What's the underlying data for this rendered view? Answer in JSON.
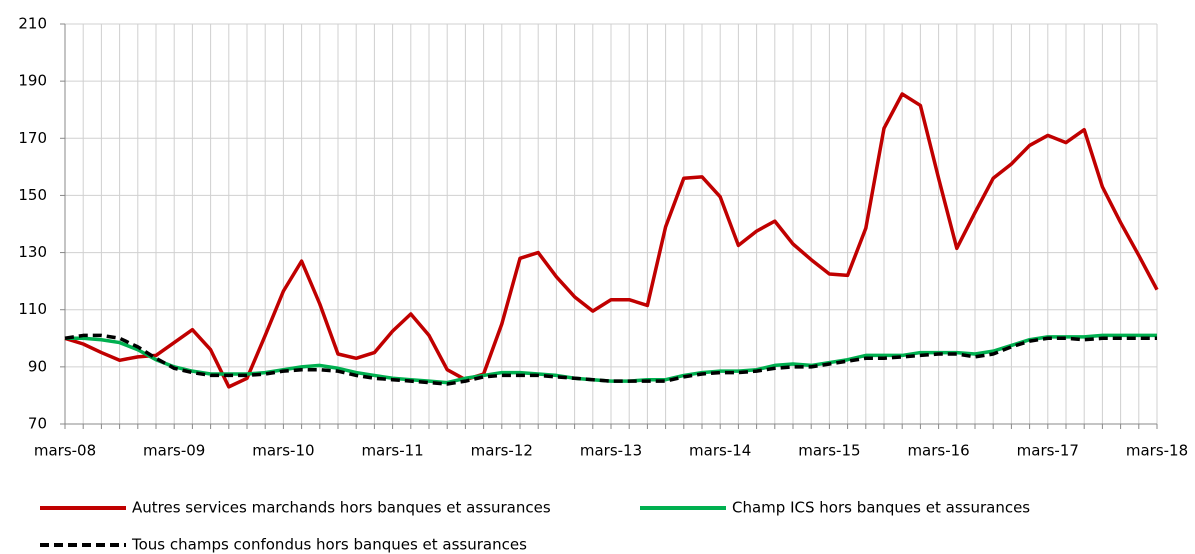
{
  "chart_data": {
    "type": "line",
    "categories": [
      "mars-08",
      null,
      null,
      null,
      null,
      null,
      "mars-09",
      null,
      null,
      null,
      null,
      null,
      "mars-10",
      null,
      null,
      null,
      null,
      null,
      "mars-11",
      null,
      null,
      null,
      null,
      null,
      "mars-12",
      null,
      null,
      null,
      null,
      null,
      "mars-13",
      null,
      null,
      null,
      null,
      null,
      "mars-14",
      null,
      null,
      null,
      null,
      null,
      "mars-15",
      null,
      null,
      null,
      null,
      null,
      "mars-16",
      null,
      null,
      null,
      null,
      null,
      "mars-17",
      null,
      null,
      null,
      null,
      null,
      "mars-18"
    ],
    "series": [
      {
        "name": "Autres services marchands hors banques et assurances",
        "color": "#c00000",
        "dash": false,
        "values": [
          100,
          98,
          95,
          92.3,
          93.5,
          94,
          98.5,
          103,
          96,
          83,
          86,
          101,
          116.5,
          127,
          112,
          94.5,
          93,
          95,
          102.5,
          108.5,
          101,
          89,
          85.5,
          87.5,
          105,
          128,
          130,
          121.5,
          114.5,
          109.5,
          113.5,
          113.5,
          111.5,
          139,
          156,
          156.5,
          149.5,
          132.5,
          137.5,
          141,
          133,
          127.5,
          122.5,
          122,
          138.5,
          173.5,
          185.5,
          181.5,
          156,
          131.5,
          144,
          156,
          161,
          167.5,
          171,
          168.5,
          173,
          153,
          140.5,
          129,
          117
        ]
      },
      {
        "name": "Champ ICS hors banques et assurances",
        "color": "#00b050",
        "dash": false,
        "values": [
          100,
          100,
          99.5,
          98.5,
          96,
          92.5,
          90,
          88.5,
          87.5,
          87.5,
          87.5,
          88,
          89,
          90,
          90.5,
          89.5,
          88,
          87,
          86,
          85.5,
          85,
          84.5,
          86,
          87,
          88,
          88,
          87.5,
          87,
          86,
          85.5,
          85,
          85,
          85.5,
          85.5,
          87,
          88,
          88.5,
          88.5,
          89,
          90.5,
          91,
          90.5,
          91.5,
          92.5,
          94,
          94,
          94,
          95,
          95,
          95,
          94.5,
          95.5,
          97.5,
          99.5,
          100.5,
          100.5,
          100.5,
          101,
          101,
          101,
          101
        ]
      },
      {
        "name": "Tous champs confondus hors banques et assurances",
        "color": "#000000",
        "dash": true,
        "values": [
          100,
          101,
          101,
          100,
          97,
          93,
          89.5,
          88,
          87,
          87,
          87,
          87.5,
          88.5,
          89,
          89,
          88.5,
          87,
          86,
          85.5,
          85,
          84.5,
          84,
          85,
          86.5,
          87,
          87,
          87,
          86.5,
          86,
          85.5,
          85,
          85,
          85,
          85,
          86.5,
          87.5,
          88,
          88,
          88.5,
          89.5,
          90,
          90,
          91,
          92,
          93,
          93,
          93.5,
          94,
          94.5,
          94.5,
          93.5,
          94.5,
          97,
          99,
          100,
          100,
          99.5,
          100,
          100,
          100,
          100
        ]
      }
    ],
    "ylim": [
      70,
      210
    ],
    "yticks": [
      70,
      90,
      110,
      130,
      150,
      170,
      190,
      210
    ],
    "grid": true
  }
}
